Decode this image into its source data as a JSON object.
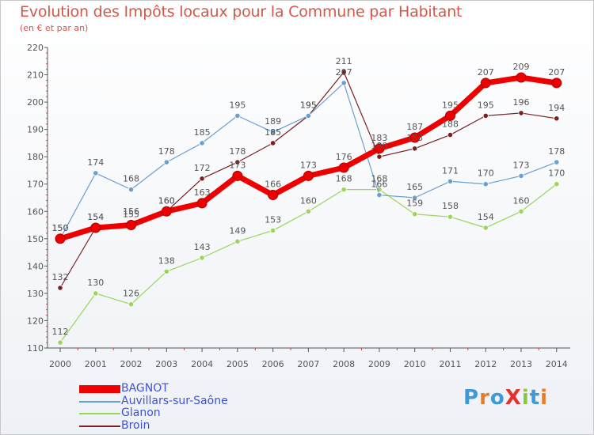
{
  "title": "Evolution des Impôts locaux pour la Commune par Habitant",
  "subtitle": "(en € et par an)",
  "colors": {
    "title": "#d4584a",
    "legend_text": "#3e52d6",
    "axis": "#555555"
  },
  "logo": {
    "text": "ProXiti",
    "colors": [
      "#3e9ad6",
      "#e77d2a",
      "#3e9ad6",
      "#e0332e",
      "#8cc63f",
      "#3e9ad6",
      "#e77d2a"
    ]
  },
  "chart_data": {
    "type": "line",
    "title": "Evolution des Impôts locaux pour la Commune par Habitant",
    "subtitle": "(en € et par an)",
    "x": [
      2000,
      2001,
      2002,
      2003,
      2004,
      2005,
      2006,
      2007,
      2008,
      2009,
      2010,
      2011,
      2012,
      2013,
      2014
    ],
    "ylim": [
      110,
      220
    ],
    "yticks": [
      110,
      120,
      130,
      140,
      150,
      160,
      170,
      180,
      190,
      200,
      210,
      220
    ],
    "grid": false,
    "legend_position": "bottom-left",
    "series": [
      {
        "name": "BAGNOT",
        "color": "#ee0000",
        "width": "thick",
        "values": [
          150,
          154,
          155,
          160,
          163,
          173,
          166,
          173,
          176,
          183,
          187,
          195,
          207,
          209,
          207
        ],
        "labels": [
          "150",
          "154",
          "155",
          "160",
          "163",
          "173",
          "166",
          "173",
          "176",
          "183",
          "187",
          "195",
          "207",
          "209",
          "207"
        ]
      },
      {
        "name": "Auvillars-sur-Saône",
        "color": "#6a9fd0",
        "width": "thin",
        "values": [
          150,
          174,
          168,
          178,
          185,
          195,
          189,
          195,
          207,
          166,
          165,
          171,
          170,
          173,
          178
        ],
        "labels": [
          "150",
          "174",
          "168",
          "178",
          "185",
          "195",
          "189",
          "195",
          "207",
          "166",
          "165",
          "171",
          "170",
          "173",
          "178"
        ]
      },
      {
        "name": "Glanon",
        "color": "#99d65a",
        "width": "thin",
        "values": [
          112,
          130,
          126,
          138,
          143,
          149,
          153,
          160,
          168,
          168,
          159,
          158,
          154,
          160,
          170
        ],
        "labels": [
          "112",
          "130",
          "126",
          "138",
          "143",
          "149",
          "153",
          "160",
          "168",
          "168",
          "159",
          "158",
          "154",
          "160",
          "170"
        ]
      },
      {
        "name": "Broin",
        "color": "#7a1f22",
        "width": "thin",
        "values": [
          132,
          154,
          156,
          160,
          172,
          178,
          185,
          195,
          211,
          180,
          183,
          188,
          195,
          196,
          194
        ],
        "labels": [
          "132",
          "154",
          "156",
          "160",
          "172",
          "178",
          "185",
          "195",
          "211",
          "180",
          "183",
          "188",
          "195",
          "196",
          "194"
        ]
      }
    ]
  }
}
